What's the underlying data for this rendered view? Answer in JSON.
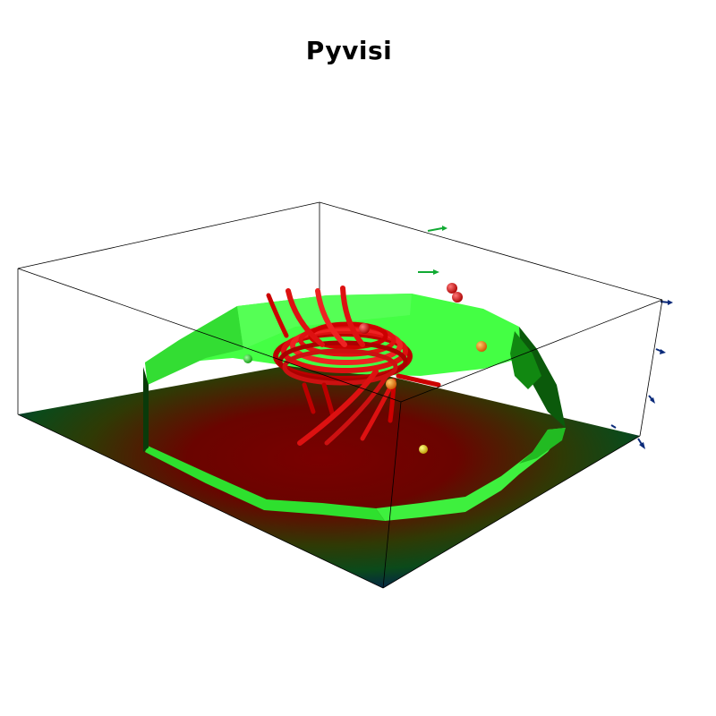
{
  "title": "Pyvisi",
  "colors": {
    "background": "#ffffff",
    "bounding_box": "#000000",
    "isosurface": "#33ff33",
    "streamlines": "#dd1111",
    "plane_center": "#7a0000",
    "plane_edge": "#001a55",
    "vector_arrows": "#0a2a7a"
  }
}
